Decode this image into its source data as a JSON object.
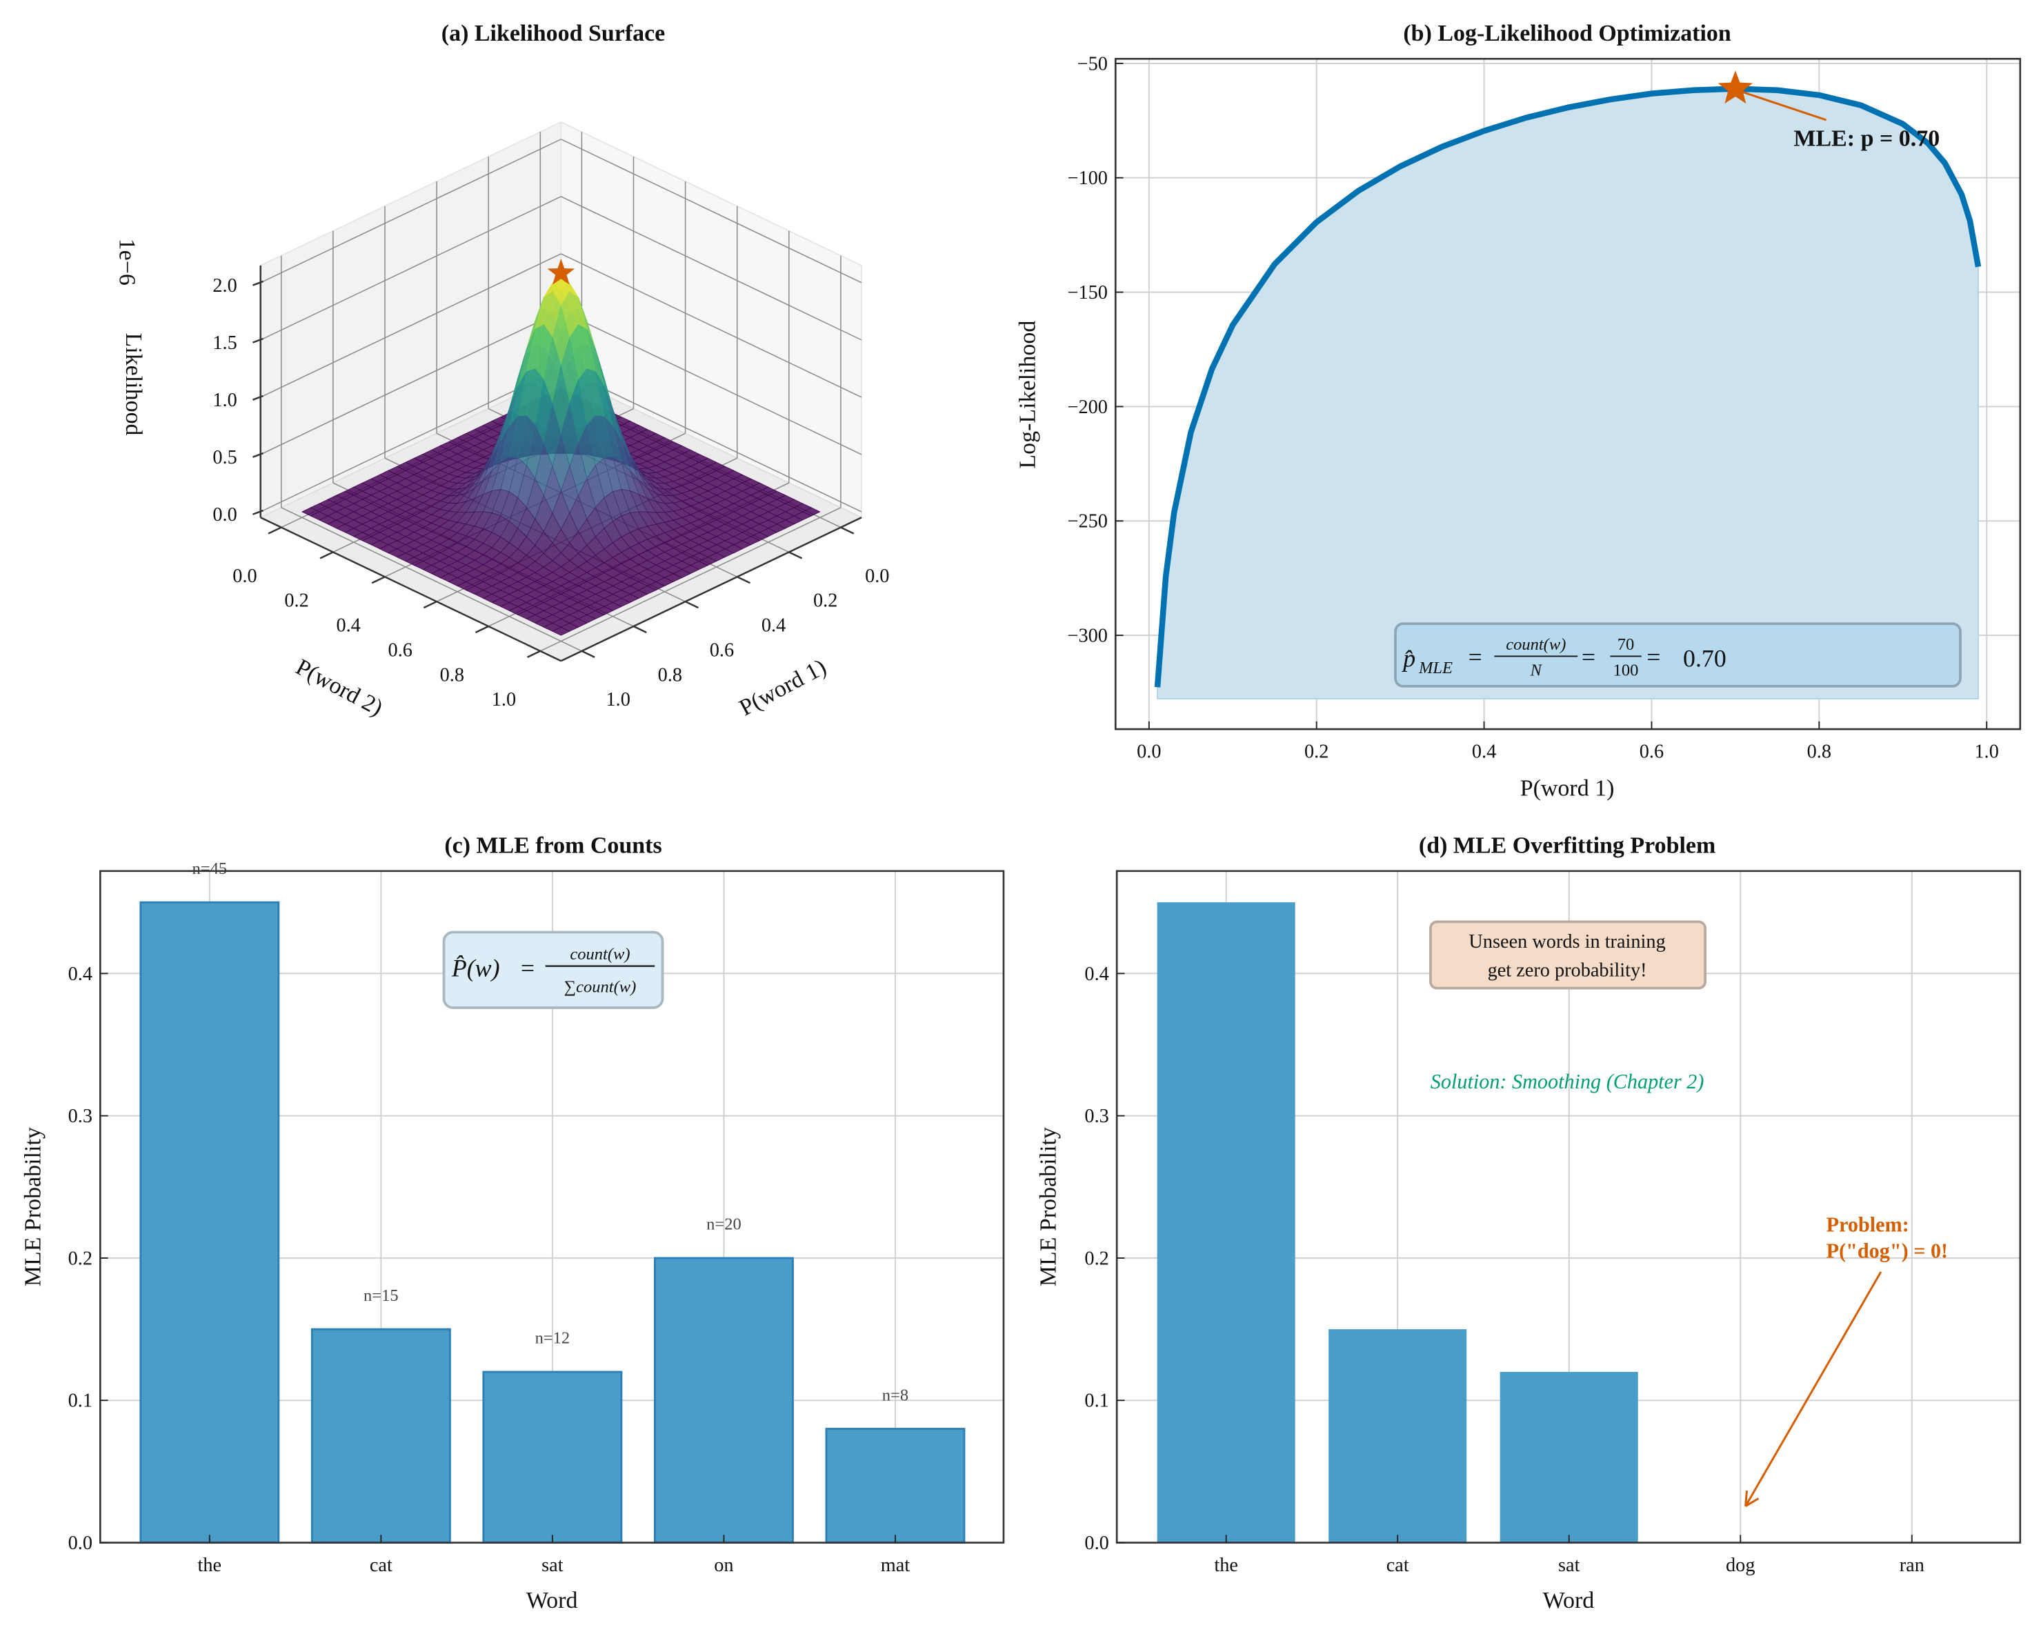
{
  "colors": {
    "bar": "#4a9cc9",
    "bar_edge": "#2b7fb6",
    "curve": "#0072b2",
    "fill": "#cde2ef",
    "accent": "#d55e00",
    "solution": "#009e73",
    "warn_box": "#f5dcc8",
    "info_box": "#dcedf7",
    "formula_box": "#b4d8ec"
  },
  "chart_data": [
    {
      "panel": "a",
      "type": "surface",
      "title": "(a) Likelihood Surface",
      "xlabel": "P(word 1)",
      "ylabel": "P(word 2)",
      "zlabel": "Likelihood",
      "z_offset_label": "1e−6",
      "xticks": [
        "0.0",
        "0.2",
        "0.4",
        "0.6",
        "0.8",
        "1.0"
      ],
      "yticks": [
        "0.0",
        "0.2",
        "0.4",
        "0.6",
        "0.8",
        "1.0"
      ],
      "zticks": [
        "0.0",
        "0.5",
        "1.0",
        "1.5",
        "2.0"
      ],
      "xlim": [
        0,
        1
      ],
      "ylim": [
        0,
        1
      ],
      "zlim": [
        0,
        2.2
      ],
      "colormap": "viridis",
      "peak": {
        "x": 0.5,
        "y": 0.5,
        "z": 2.05,
        "marker": "star"
      }
    },
    {
      "panel": "b",
      "type": "area",
      "title": "(b) Log-Likelihood Optimization",
      "xlabel": "P(word 1)",
      "ylabel": "Log-Likelihood",
      "xlim": [
        -0.04,
        1.04
      ],
      "ylim": [
        -341,
        -48
      ],
      "xticks": [
        "0.0",
        "0.2",
        "0.4",
        "0.6",
        "0.8",
        "1.0"
      ],
      "yticks": [
        "−50",
        "−100",
        "−150",
        "−200",
        "−250",
        "−300"
      ],
      "ytick_values": [
        -50,
        -100,
        -150,
        -200,
        -250,
        -300
      ],
      "xtick_values": [
        0,
        0.2,
        0.4,
        0.6,
        0.8,
        1.0
      ],
      "grid": true,
      "x": [
        0.01,
        0.02,
        0.03,
        0.05,
        0.075,
        0.1,
        0.15,
        0.2,
        0.25,
        0.3,
        0.35,
        0.4,
        0.45,
        0.5,
        0.55,
        0.6,
        0.65,
        0.7,
        0.75,
        0.8,
        0.85,
        0.9,
        0.93,
        0.95,
        0.97,
        0.98,
        0.99
      ],
      "y": [
        -322.7,
        -274.4,
        -246.4,
        -211.2,
        -183.7,
        -164.3,
        -137.7,
        -119.4,
        -105.7,
        -95.0,
        -86.4,
        -79.5,
        -73.8,
        -69.3,
        -65.8,
        -63.2,
        -61.7,
        -61.1,
        -61.7,
        -63.9,
        -68.3,
        -76.5,
        -84.9,
        -93.5,
        -107.3,
        -118.8,
        -138.9
      ],
      "fill_baseline": -327.7,
      "mle": {
        "x": 0.7,
        "y": -61.1,
        "label": "MLE: p = 0.70"
      },
      "formula": {
        "lhs": "p̂",
        "sub": "MLE",
        "eq": "=",
        "num1": "count(w)",
        "den1": "N",
        "num2": "70",
        "den2": "100",
        "result": "0.70"
      }
    },
    {
      "panel": "c",
      "type": "bar",
      "title": "(c) MLE from Counts",
      "xlabel": "Word",
      "ylabel": "MLE Probability",
      "categories": [
        "the",
        "cat",
        "sat",
        "on",
        "mat"
      ],
      "values": [
        0.45,
        0.15,
        0.12,
        0.2,
        0.08
      ],
      "data_labels": [
        "n=45",
        "n=15",
        "n=12",
        "n=20",
        "n=8"
      ],
      "ylim": [
        0,
        0.472
      ],
      "yticks": [
        "0.0",
        "0.1",
        "0.2",
        "0.3",
        "0.4"
      ],
      "ytick_values": [
        0,
        0.1,
        0.2,
        0.3,
        0.4
      ],
      "grid": true,
      "formula": {
        "lhs": "P̂(w)",
        "eq": "=",
        "num": "count(w)",
        "den": "∑count(w)"
      }
    },
    {
      "panel": "d",
      "type": "bar",
      "title": "(d) MLE Overfitting Problem",
      "xlabel": "Word",
      "ylabel": "MLE Probability",
      "categories": [
        "the",
        "cat",
        "sat",
        "dog",
        "ran"
      ],
      "values": [
        0.45,
        0.15,
        0.12,
        0,
        0
      ],
      "ylim": [
        0,
        0.472
      ],
      "yticks": [
        "0.0",
        "0.1",
        "0.2",
        "0.3",
        "0.4"
      ],
      "ytick_values": [
        0,
        0.1,
        0.2,
        0.3,
        0.4
      ],
      "grid": true,
      "note_lines": [
        "Unseen words in training",
        "get zero probability!"
      ],
      "solution": "Solution: Smoothing (Chapter 2)",
      "problem_lines": [
        "Problem:",
        "P(\"dog\") = 0!"
      ]
    }
  ]
}
